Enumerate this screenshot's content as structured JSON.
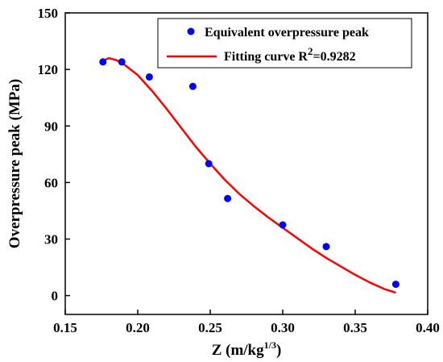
{
  "chart_data": {
    "type": "scatter",
    "xlabel": "Z (m/kg",
    "xlabel_sup": "1/3",
    "xlabel_close": ")",
    "ylabel": "Overpressure peak (MPa)",
    "xlim": [
      0.15,
      0.4
    ],
    "ylim": [
      -10,
      150
    ],
    "xticks": [
      "0.15",
      "0.20",
      "0.25",
      "0.30",
      "0.35",
      "0.40"
    ],
    "yticks": [
      "0",
      "30",
      "60",
      "90",
      "120",
      "150"
    ],
    "grid": false,
    "legend_position": "top-right",
    "series": [
      {
        "name": "Equivalent overpressure peak",
        "kind": "scatter",
        "color": "#0000ff",
        "x": [
          0.176,
          0.189,
          0.208,
          0.238,
          0.249,
          0.262,
          0.3,
          0.33,
          0.378
        ],
        "y": [
          124,
          124,
          116,
          111,
          70,
          51.5,
          37.5,
          26,
          6
        ]
      },
      {
        "name": "Fitting curve R",
        "name_sup": "2",
        "name_suffix": "=0.9282",
        "kind": "line",
        "color": "#ff0000",
        "x": [
          0.176,
          0.18,
          0.185,
          0.19,
          0.2,
          0.21,
          0.22,
          0.23,
          0.24,
          0.25,
          0.26,
          0.27,
          0.28,
          0.29,
          0.3,
          0.31,
          0.32,
          0.33,
          0.34,
          0.35,
          0.36,
          0.37,
          0.378
        ],
        "y": [
          124.5,
          126,
          125,
          123,
          117,
          108.5,
          99,
          89,
          79,
          70,
          61.5,
          54,
          47.5,
          41.5,
          36,
          30.5,
          25,
          20,
          15.5,
          11,
          7,
          3.5,
          1.5
        ]
      }
    ]
  }
}
